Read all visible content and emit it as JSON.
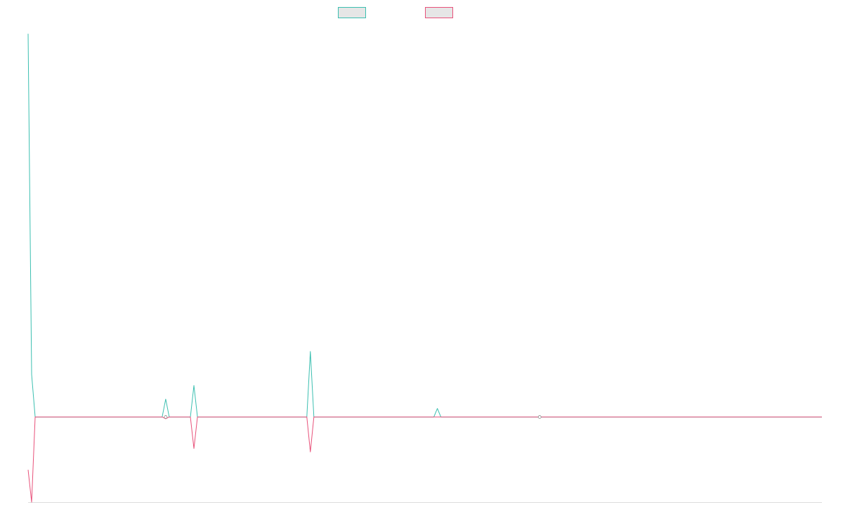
{
  "chart_data": {
    "type": "line",
    "title": "",
    "xlabel": "",
    "ylabel": "",
    "legend_placement": "top-center",
    "grid": false,
    "x_count": 226,
    "ylim": [
      -1.0,
      4.6
    ],
    "series": [
      {
        "color": "#3bbfb0",
        "legend_fill": "#e6e6e6",
        "points": [
          [
            0,
            4.5
          ],
          [
            1,
            0.5
          ],
          [
            2,
            0.0
          ],
          [
            38,
            0.0
          ],
          [
            39,
            0.21
          ],
          [
            40,
            0.0
          ],
          [
            46,
            0.0
          ],
          [
            47,
            0.37
          ],
          [
            48,
            0.0
          ],
          [
            79,
            0.0
          ],
          [
            80,
            0.77
          ],
          [
            81,
            0.0
          ],
          [
            115,
            0.0
          ],
          [
            116,
            0.1
          ],
          [
            117,
            0.0
          ],
          [
            225,
            0.0
          ]
        ]
      },
      {
        "color": "#e8517a",
        "legend_fill": "#e6e6e6",
        "points": [
          [
            0,
            -0.62
          ],
          [
            1,
            -1.0
          ],
          [
            2,
            0.0
          ],
          [
            38,
            0.0
          ],
          [
            39,
            -0.02
          ],
          [
            40,
            0.0
          ],
          [
            46,
            0.0
          ],
          [
            47,
            -0.37
          ],
          [
            48,
            0.0
          ],
          [
            79,
            0.0
          ],
          [
            80,
            -0.41
          ],
          [
            81,
            0.0
          ],
          [
            225,
            0.0
          ]
        ]
      }
    ],
    "marker_points": [
      {
        "x": 39,
        "y": 0.0
      },
      {
        "x": 145,
        "y": 0.0
      }
    ]
  }
}
